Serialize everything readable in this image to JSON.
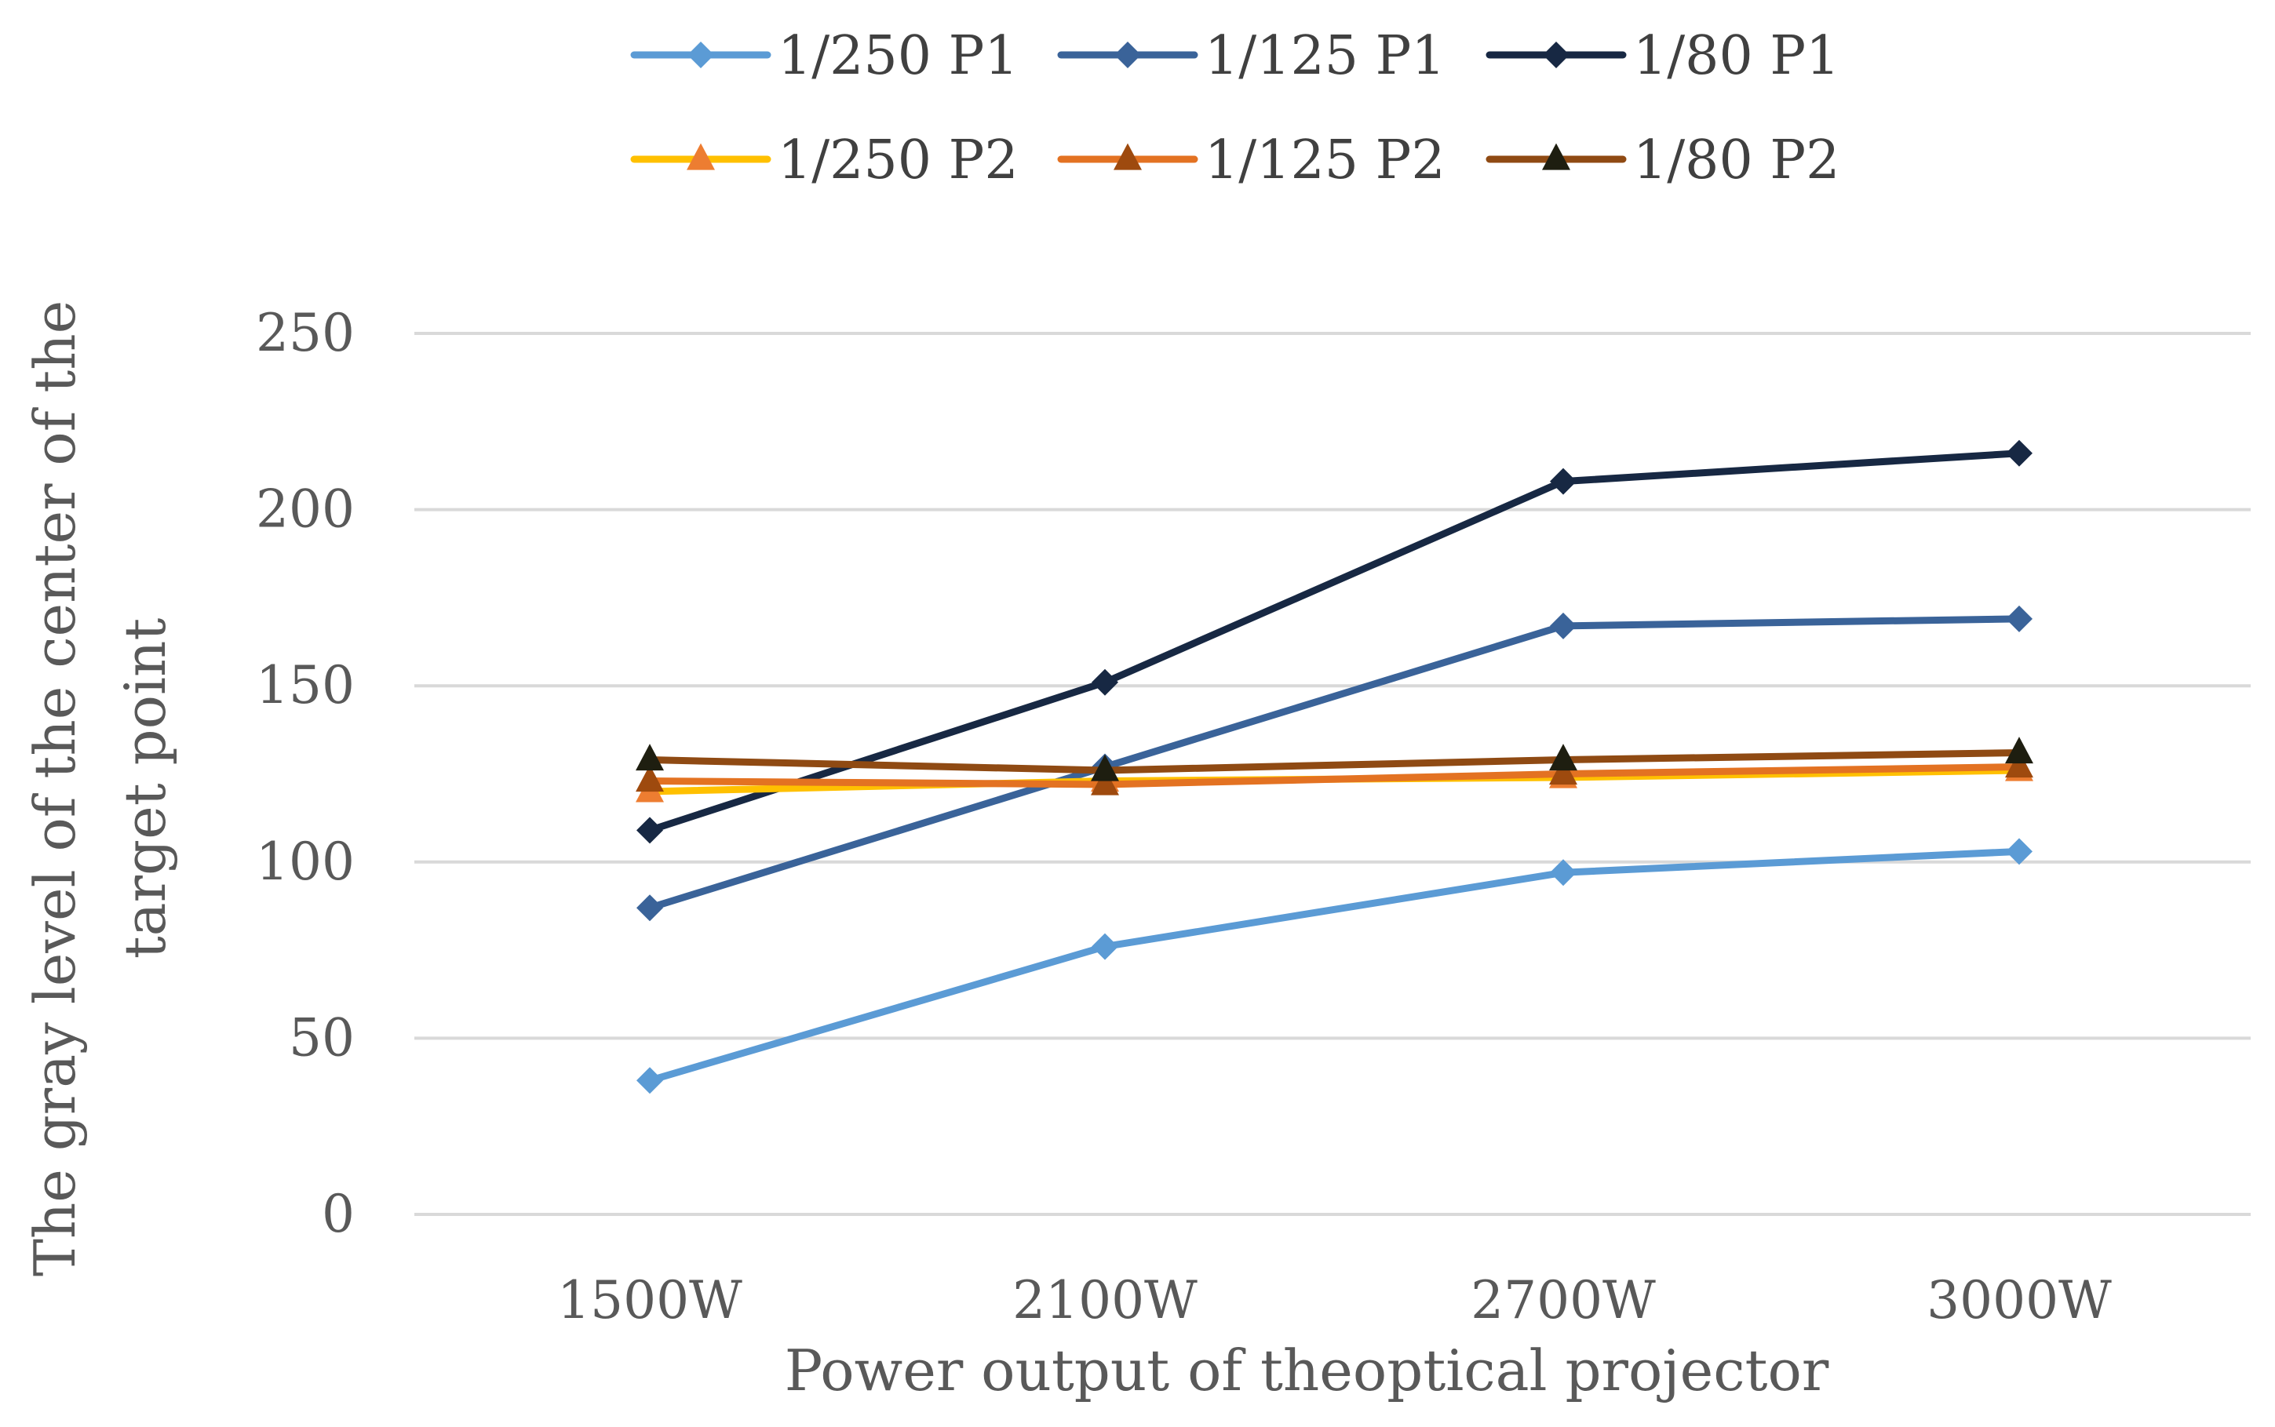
{
  "chart_data": {
    "type": "line",
    "title": "",
    "xlabel": "Power output of theoptical projector",
    "ylabel_lines": [
      "The gray level of the center of the",
      "target point"
    ],
    "categories": [
      "1500W",
      "2100W",
      "2700W",
      "3000W"
    ],
    "ylim": [
      0,
      250
    ],
    "yticks": [
      0,
      50,
      100,
      150,
      200,
      250
    ],
    "grid": true,
    "legend_position": "top",
    "series": [
      {
        "name": "1/250 P1",
        "values": [
          38,
          76,
          97,
          103
        ],
        "color": "#5b9bd5",
        "marker": "diamond",
        "marker_color": "#5b9bd5"
      },
      {
        "name": "1/125 P1",
        "values": [
          87,
          127,
          167,
          169
        ],
        "color": "#3a6399",
        "marker": "diamond",
        "marker_color": "#3a6399"
      },
      {
        "name": "1/80 P1",
        "values": [
          109,
          151,
          208,
          216
        ],
        "color": "#172843",
        "marker": "diamond",
        "marker_color": "#172843"
      },
      {
        "name": "1/250 P2",
        "values": [
          120,
          123,
          124,
          126
        ],
        "color": "#ffc000",
        "marker": "triangle",
        "marker_color": "#ed7d31"
      },
      {
        "name": "1/125 P2",
        "values": [
          123,
          122,
          125,
          127
        ],
        "color": "#e37222",
        "marker": "triangle",
        "marker_color": "#9e4a0e"
      },
      {
        "name": "1/80 P2",
        "values": [
          129,
          126,
          129,
          131
        ],
        "color": "#8f4a13",
        "marker": "triangle",
        "marker_color": "#1e1e10"
      }
    ]
  }
}
